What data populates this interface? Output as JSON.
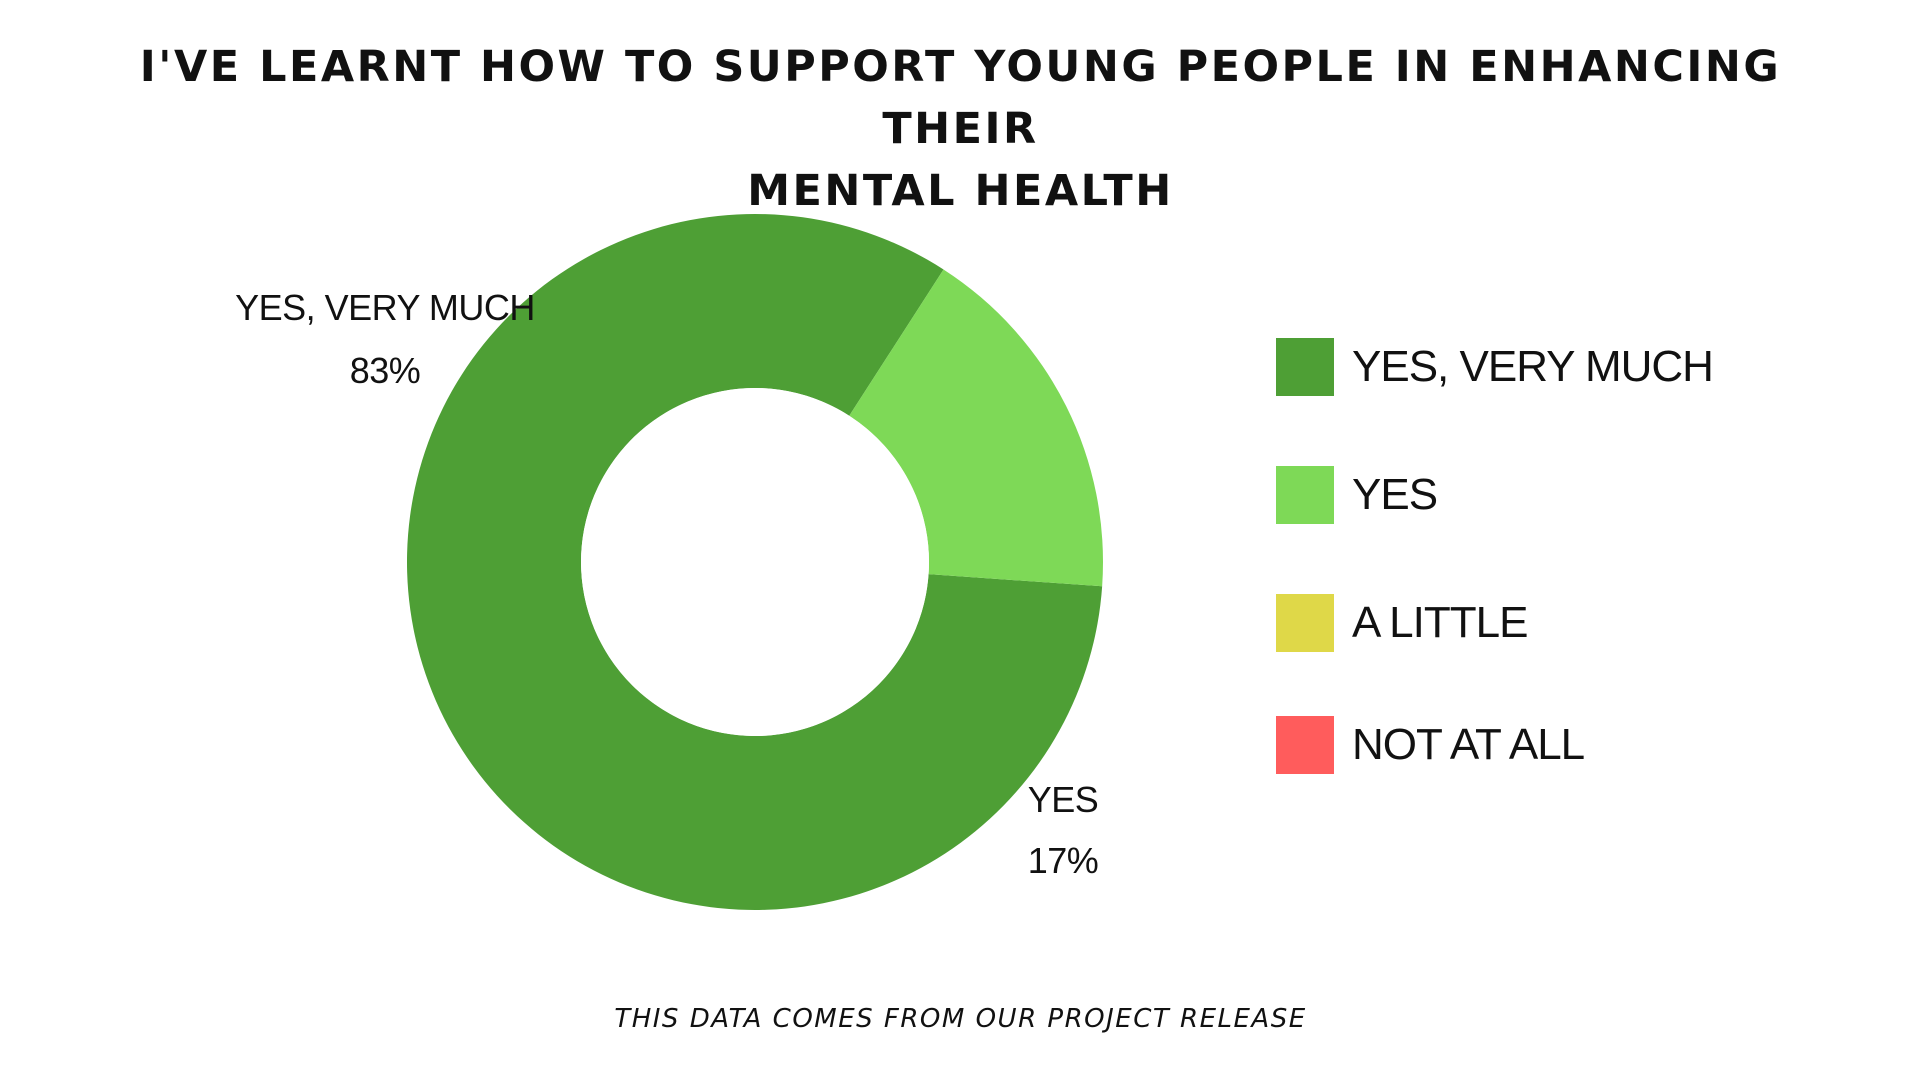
{
  "title": {
    "line1": "I'VE LEARNT HOW TO SUPPORT YOUNG PEOPLE IN ENHANCING THEIR",
    "line2": "MENTAL HEALTH"
  },
  "footnote": "THIS DATA COMES FROM OUR PROJECT RELEASE",
  "colors": {
    "yes_very_much": "#4e9f35",
    "yes": "#7ed957",
    "a_little": "#dfd848",
    "not_at_all": "#ff5c5c"
  },
  "chart_data": {
    "type": "pie",
    "variant": "donut",
    "title": "I'VE LEARNT HOW TO SUPPORT YOUNG PEOPLE IN ENHANCING THEIR MENTAL HEALTH",
    "categories": [
      "YES, VERY MUCH",
      "YES",
      "A LITTLE",
      "NOT AT ALL"
    ],
    "values": [
      83,
      17,
      0,
      0
    ],
    "unit": "%",
    "colors": [
      "#4e9f35",
      "#7ed957",
      "#dfd848",
      "#ff5c5c"
    ],
    "slice_labels": [
      {
        "name": "YES, VERY MUCH",
        "value": "83%"
      },
      {
        "name": "YES",
        "value": "17%"
      }
    ],
    "legend": {
      "position": "right",
      "entries": [
        "YES, VERY MUCH",
        "YES",
        "A LITTLE",
        "NOT AT ALL"
      ]
    }
  }
}
